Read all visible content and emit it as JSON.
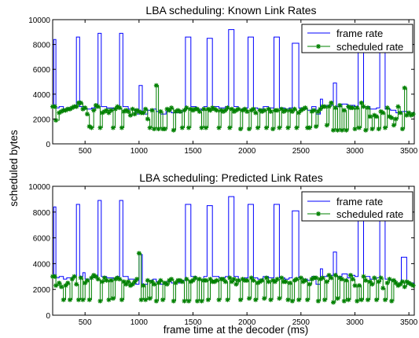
{
  "colors": {
    "frame_rate": "#0000ff",
    "scheduled_rate": "#008000",
    "axes": "#000000",
    "background": "#ffffff"
  },
  "shared": {
    "ylabel": "scheduled bytes",
    "xlabel": "frame time at the decoder (ms)"
  },
  "chart_data": [
    {
      "type": "line",
      "title": "LBA scheduling: Known Link Rates",
      "xlim": [
        200,
        3550
      ],
      "ylim": [
        0,
        10000
      ],
      "xticks": [
        500,
        1000,
        1500,
        2000,
        2500,
        3000,
        3500
      ],
      "yticks": [
        0,
        2000,
        4000,
        6000,
        8000,
        10000
      ],
      "legend": {
        "position": "top-right",
        "entries": [
          "frame rate",
          "scheduled rate"
        ]
      },
      "series": [
        {
          "name": "frame rate",
          "style": "step",
          "marker": "none",
          "x": [
            200,
            210,
            230,
            260,
            300,
            330,
            390,
            420,
            450,
            500,
            560,
            590,
            620,
            650,
            700,
            760,
            790,
            820,
            850,
            900,
            970,
            1000,
            1030,
            1080,
            1130,
            1160,
            1200,
            1250,
            1300,
            1360,
            1400,
            1430,
            1480,
            1530,
            1580,
            1600,
            1630,
            1680,
            1740,
            1800,
            1830,
            1880,
            1920,
            1980,
            2010,
            2060,
            2100,
            2150,
            2200,
            2250,
            2300,
            2350,
            2390,
            2420,
            2480,
            2520,
            2560,
            2600,
            2640,
            2680,
            2700,
            2740,
            2780,
            2800,
            2830,
            2880,
            2930,
            2960,
            3000,
            3030,
            3080,
            3140,
            3200,
            3230,
            3280,
            3330,
            3380,
            3430,
            3480,
            3500,
            3550
          ],
          "y": [
            3000,
            8400,
            2900,
            3000,
            2800,
            2900,
            3000,
            8600,
            3000,
            2800,
            2900,
            3000,
            8900,
            3000,
            2900,
            2800,
            3000,
            8900,
            3000,
            2800,
            2400,
            4700,
            2400,
            2700,
            2800,
            2600,
            2400,
            2600,
            2500,
            2500,
            2700,
            8600,
            3000,
            2800,
            2700,
            3000,
            8500,
            3000,
            2900,
            3000,
            9200,
            3000,
            2800,
            2900,
            8600,
            2900,
            2800,
            3000,
            2900,
            8600,
            2900,
            2800,
            2900,
            8100,
            2900,
            2800,
            2700,
            3000,
            2400,
            3600,
            3000,
            3100,
            3100,
            4900,
            3000,
            3200,
            2900,
            3100,
            3000,
            8700,
            3000,
            2800,
            2900,
            8500,
            2800,
            2700,
            2500,
            2600,
            2400,
            2500,
            2500
          ]
        },
        {
          "name": "scheduled rate",
          "style": "step",
          "marker": "star",
          "x": [
            200,
            220,
            230,
            260,
            280,
            300,
            320,
            340,
            360,
            380,
            400,
            420,
            440,
            460,
            480,
            500,
            520,
            540,
            560,
            580,
            600,
            620,
            640,
            660,
            680,
            700,
            720,
            740,
            760,
            780,
            800,
            820,
            840,
            860,
            880,
            900,
            920,
            940,
            960,
            980,
            1000,
            1020,
            1040,
            1060,
            1080,
            1100,
            1120,
            1140,
            1160,
            1180,
            1200,
            1220,
            1240,
            1260,
            1280,
            1300,
            1320,
            1340,
            1360,
            1380,
            1400,
            1420,
            1440,
            1460,
            1480,
            1500,
            1520,
            1540,
            1560,
            1580,
            1600,
            1620,
            1640,
            1660,
            1680,
            1700,
            1720,
            1740,
            1760,
            1780,
            1800,
            1820,
            1840,
            1860,
            1880,
            1900,
            1920,
            1940,
            1960,
            1980,
            2000,
            2020,
            2040,
            2060,
            2080,
            2100,
            2120,
            2140,
            2160,
            2180,
            2200,
            2220,
            2240,
            2260,
            2280,
            2300,
            2320,
            2340,
            2360,
            2380,
            2400,
            2420,
            2440,
            2460,
            2480,
            2500,
            2520,
            2540,
            2560,
            2580,
            2600,
            2620,
            2640,
            2660,
            2680,
            2700,
            2720,
            2740,
            2760,
            2780,
            2800,
            2820,
            2840,
            2860,
            2880,
            2900,
            2920,
            2940,
            2960,
            2980,
            3000,
            3020,
            3040,
            3060,
            3080,
            3100,
            3120,
            3140,
            3160,
            3180,
            3200,
            3220,
            3240,
            3260,
            3280,
            3300,
            3320,
            3340,
            3360,
            3380,
            3400,
            3420,
            3440,
            3460,
            3480,
            3500,
            3520,
            3540
          ],
          "y": [
            3000,
            3000,
            1900,
            2500,
            2600,
            2700,
            2700,
            2800,
            2800,
            2900,
            3000,
            3000,
            3300,
            3300,
            2800,
            2900,
            2400,
            1400,
            1300,
            2700,
            3100,
            3000,
            1300,
            2500,
            2600,
            2700,
            2500,
            2700,
            1300,
            2800,
            3000,
            2900,
            1300,
            2600,
            2700,
            2600,
            2300,
            2800,
            2400,
            2700,
            2600,
            2500,
            2500,
            2800,
            2000,
            1300,
            2700,
            1200,
            4700,
            1200,
            2600,
            1200,
            1200,
            2800,
            2700,
            2900,
            1100,
            2600,
            2700,
            2600,
            1300,
            2700,
            2900,
            1300,
            2800,
            2700,
            2800,
            2800,
            2600,
            1300,
            2800,
            1300,
            2800,
            2700,
            2900,
            2800,
            2700,
            1300,
            2700,
            2600,
            2700,
            2900,
            1300,
            2800,
            2600,
            2700,
            2800,
            1200,
            2700,
            2800,
            2600,
            1200,
            2700,
            2800,
            2500,
            1300,
            2700,
            2600,
            2700,
            1300,
            2800,
            2600,
            1200,
            2700,
            2700,
            1300,
            2800,
            2600,
            2700,
            1300,
            2700,
            2600,
            2800,
            1300,
            2500,
            2700,
            2800,
            2900,
            1300,
            1300,
            2600,
            2700,
            1400,
            2600,
            2800,
            3000,
            3000,
            1500,
            3000,
            3300,
            1100,
            2900,
            1100,
            3100,
            1100,
            2700,
            1100,
            3000,
            2900,
            2900,
            1200,
            2900,
            1300,
            3300,
            3000,
            1100,
            2900,
            2200,
            1200,
            2300,
            2200,
            1200,
            2600,
            2500,
            1300,
            2900,
            2200,
            2100,
            1500,
            2000,
            3000,
            2500,
            1200,
            4500,
            2300,
            2500,
            2300,
            2400
          ]
        }
      ]
    },
    {
      "type": "line",
      "title": "LBA scheduling: Predicted Link Rates",
      "xlim": [
        200,
        3550
      ],
      "ylim": [
        0,
        10000
      ],
      "xticks": [
        500,
        1000,
        1500,
        2000,
        2500,
        3000,
        3500
      ],
      "yticks": [
        0,
        2000,
        4000,
        6000,
        8000,
        10000
      ],
      "legend": {
        "position": "top-right",
        "entries": [
          "frame rate",
          "scheduled rate"
        ]
      },
      "series": [
        {
          "name": "frame rate",
          "style": "step",
          "marker": "none",
          "x": [
            200,
            210,
            230,
            260,
            300,
            330,
            390,
            420,
            450,
            480,
            500,
            560,
            590,
            620,
            650,
            700,
            760,
            790,
            820,
            850,
            900,
            970,
            1000,
            1030,
            1080,
            1130,
            1160,
            1200,
            1250,
            1300,
            1360,
            1400,
            1430,
            1480,
            1530,
            1580,
            1600,
            1630,
            1680,
            1740,
            1800,
            1830,
            1880,
            1920,
            1980,
            2010,
            2060,
            2100,
            2150,
            2200,
            2250,
            2300,
            2350,
            2390,
            2420,
            2480,
            2520,
            2560,
            2600,
            2640,
            2680,
            2700,
            2740,
            2780,
            2800,
            2830,
            2880,
            2930,
            2960,
            3000,
            3030,
            3080,
            3140,
            3200,
            3230,
            3280,
            3330,
            3380,
            3430,
            3480,
            3500,
            3550
          ],
          "y": [
            3000,
            8400,
            2900,
            3000,
            2800,
            2900,
            3000,
            8600,
            3000,
            3300,
            2800,
            2900,
            3000,
            8900,
            3000,
            2900,
            2800,
            3000,
            8900,
            3000,
            2800,
            2400,
            4700,
            2400,
            2700,
            2800,
            2600,
            2400,
            2600,
            2500,
            2500,
            2700,
            8600,
            3000,
            2800,
            2700,
            3000,
            8500,
            3000,
            2900,
            3000,
            9200,
            3000,
            2800,
            2900,
            8600,
            2900,
            2800,
            3000,
            2900,
            8600,
            2900,
            2800,
            2900,
            8100,
            2900,
            2800,
            2700,
            3000,
            2400,
            3600,
            3000,
            3100,
            3100,
            4900,
            3000,
            3200,
            2900,
            3100,
            3000,
            8700,
            3000,
            2800,
            2900,
            8500,
            2800,
            2700,
            2500,
            4500,
            2400,
            2500,
            2500
          ]
        },
        {
          "name": "scheduled rate",
          "style": "step",
          "marker": "star",
          "x": [
            200,
            220,
            230,
            260,
            280,
            300,
            320,
            340,
            360,
            380,
            400,
            420,
            440,
            460,
            480,
            500,
            520,
            540,
            560,
            580,
            600,
            620,
            640,
            660,
            680,
            700,
            720,
            740,
            760,
            780,
            800,
            820,
            840,
            860,
            880,
            900,
            920,
            940,
            960,
            980,
            1000,
            1020,
            1040,
            1060,
            1080,
            1100,
            1120,
            1140,
            1160,
            1180,
            1200,
            1220,
            1240,
            1260,
            1280,
            1300,
            1320,
            1340,
            1360,
            1380,
            1400,
            1420,
            1440,
            1460,
            1480,
            1500,
            1520,
            1540,
            1560,
            1580,
            1600,
            1620,
            1640,
            1660,
            1680,
            1700,
            1720,
            1740,
            1760,
            1780,
            1800,
            1820,
            1840,
            1860,
            1880,
            1900,
            1920,
            1940,
            1960,
            1980,
            2000,
            2020,
            2040,
            2060,
            2080,
            2100,
            2120,
            2140,
            2160,
            2180,
            2200,
            2220,
            2240,
            2260,
            2280,
            2300,
            2320,
            2340,
            2360,
            2380,
            2400,
            2420,
            2440,
            2460,
            2480,
            2500,
            2520,
            2540,
            2560,
            2580,
            2600,
            2620,
            2640,
            2660,
            2680,
            2700,
            2720,
            2740,
            2760,
            2780,
            2800,
            2820,
            2840,
            2860,
            2880,
            2900,
            2920,
            2940,
            2960,
            2980,
            3000,
            3020,
            3040,
            3060,
            3080,
            3100,
            3120,
            3140,
            3160,
            3180,
            3200,
            3220,
            3240,
            3260,
            3280,
            3300,
            3320,
            3340,
            3360,
            3380,
            3400,
            3420,
            3440,
            3460,
            3480,
            3500,
            3520,
            3540
          ],
          "y": [
            3000,
            3000,
            2300,
            2500,
            2200,
            1200,
            2300,
            2500,
            1200,
            2800,
            3000,
            2400,
            1200,
            2900,
            1200,
            2500,
            2700,
            1200,
            2900,
            3100,
            3000,
            2800,
            1100,
            2600,
            2900,
            2700,
            1200,
            2700,
            1300,
            2800,
            2900,
            2800,
            1200,
            2600,
            2400,
            2600,
            2300,
            2400,
            2600,
            2800,
            4800,
            1200,
            2300,
            1200,
            2700,
            1300,
            2600,
            2400,
            1100,
            2500,
            2700,
            1200,
            2500,
            2400,
            2700,
            2800,
            1100,
            2500,
            2700,
            2700,
            2600,
            1100,
            2800,
            1100,
            2600,
            2700,
            2900,
            1100,
            2800,
            1100,
            2700,
            2700,
            1200,
            2800,
            2600,
            2600,
            2700,
            1200,
            2800,
            2800,
            2600,
            1200,
            2900,
            2600,
            2800,
            2400,
            2700,
            1200,
            2800,
            2700,
            2700,
            1300,
            2900,
            2700,
            1200,
            2500,
            2600,
            2700,
            1300,
            2900,
            2600,
            1200,
            2700,
            2600,
            2800,
            1300,
            2900,
            2600,
            2600,
            1200,
            2500,
            1100,
            2700,
            2800,
            1200,
            2900,
            2600,
            2700,
            1200,
            2400,
            2800,
            2900,
            2900,
            1100,
            2800,
            2900,
            1200,
            2600,
            3100,
            2900,
            1000,
            3100,
            1300,
            2900,
            2800,
            1100,
            2700,
            1200,
            3100,
            2800,
            2300,
            1100,
            2300,
            1200,
            3000,
            2700,
            1200,
            2600,
            2400,
            2900,
            1200,
            2600,
            2900,
            2100,
            1200,
            2500,
            2800,
            1100,
            2700,
            2500,
            2300,
            2400,
            2600,
            2200,
            2600,
            2500,
            2400,
            2300
          ]
        }
      ]
    }
  ]
}
